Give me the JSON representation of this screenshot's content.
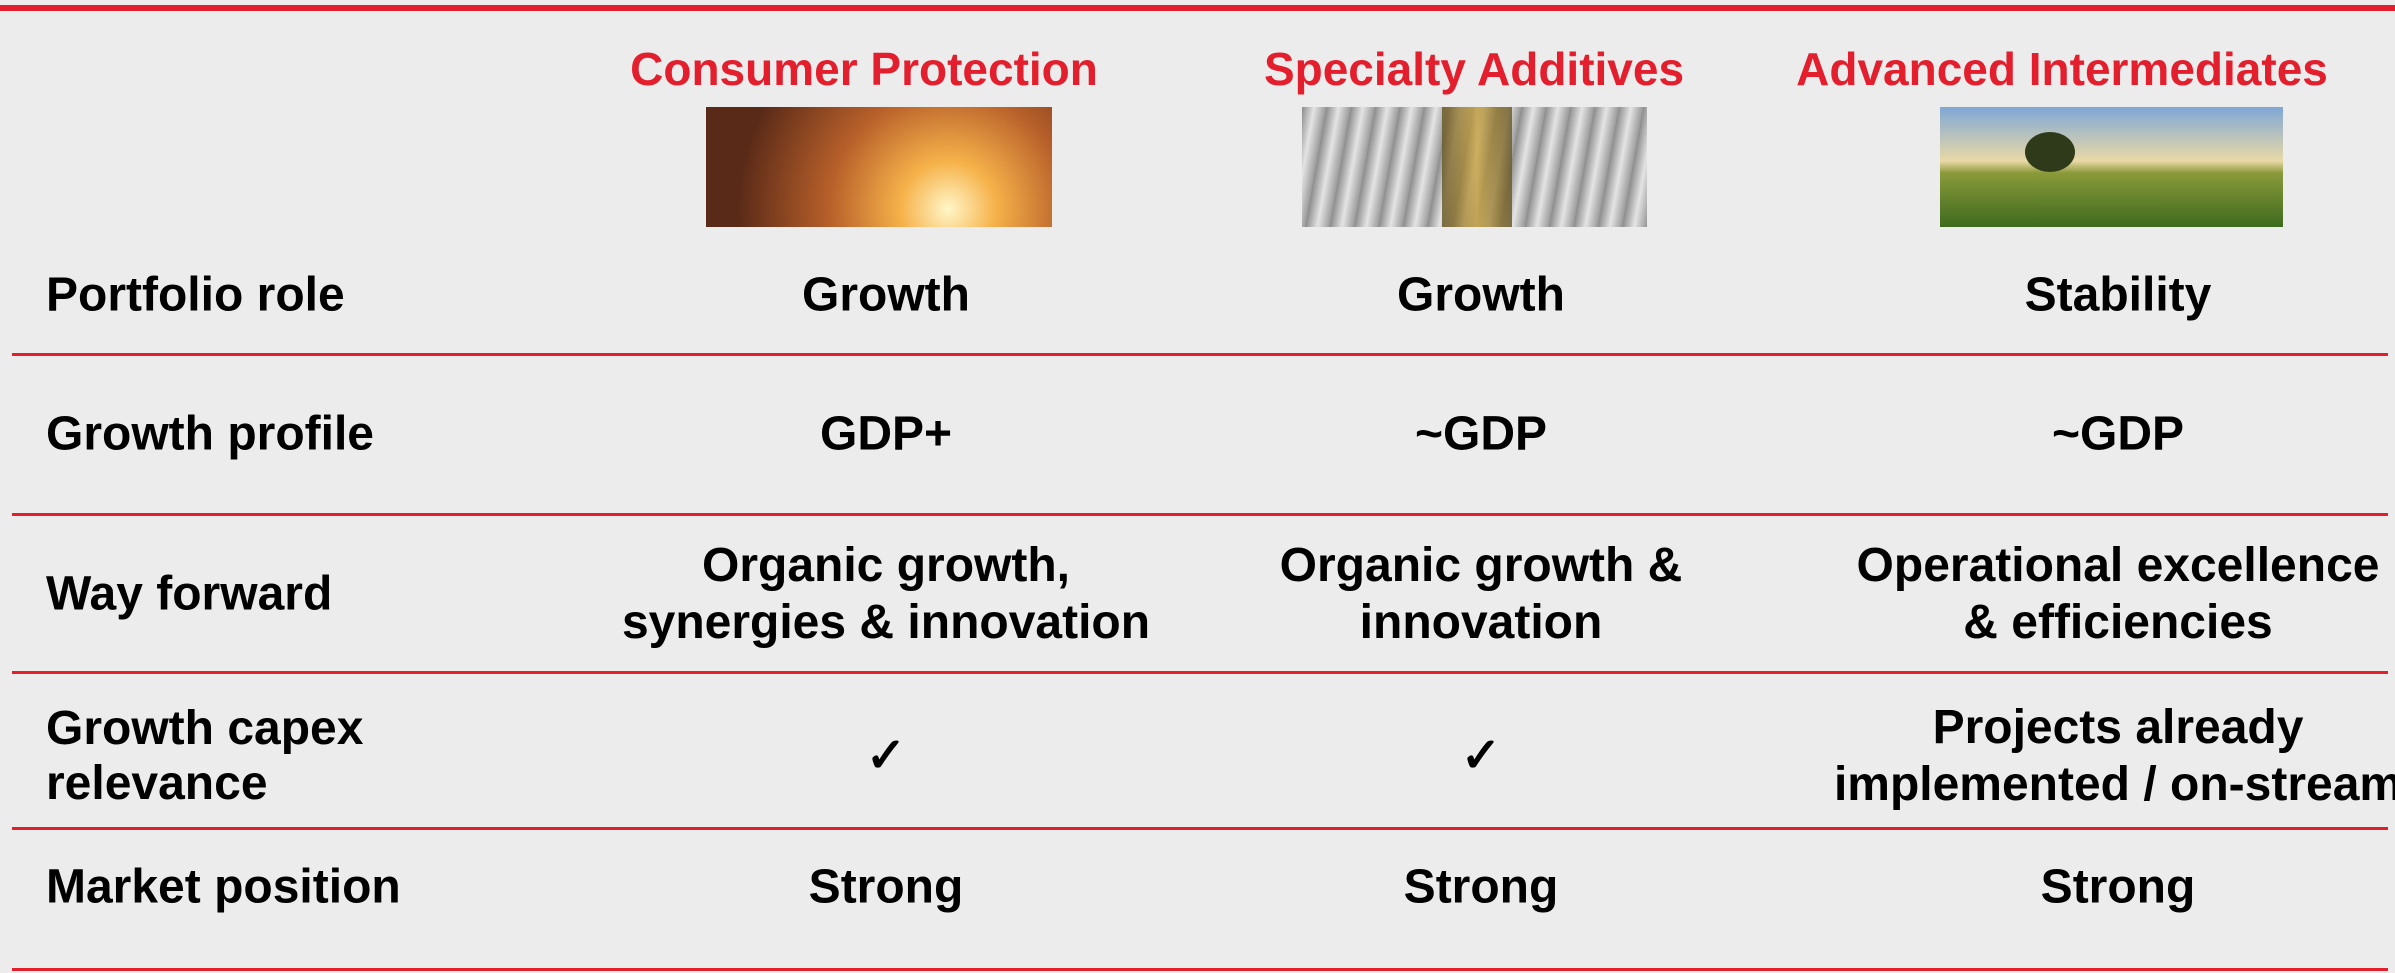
{
  "header": {
    "columns": [
      "Consumer Protection",
      "Specialty Additives",
      "Advanced Intermediates"
    ]
  },
  "rows": [
    {
      "label": [
        "Portfolio role"
      ],
      "cells": [
        [
          "Growth"
        ],
        [
          "Growth"
        ],
        [
          "Stability"
        ]
      ]
    },
    {
      "label": [
        "Growth profile"
      ],
      "cells": [
        [
          "GDP+"
        ],
        [
          "~GDP"
        ],
        [
          "~GDP"
        ]
      ]
    },
    {
      "label": [
        "Way forward"
      ],
      "cells": [
        [
          "Organic growth,",
          "synergies & innovation"
        ],
        [
          "Organic growth &",
          "innovation"
        ],
        [
          "Operational excellence",
          "& efficiencies"
        ]
      ]
    },
    {
      "label": [
        "Growth capex",
        "relevance"
      ],
      "cells": [
        [
          "✓"
        ],
        [
          "✓"
        ],
        [
          "Projects already",
          "implemented / on-stream"
        ]
      ]
    },
    {
      "label": [
        "Market position"
      ],
      "cells": [
        [
          "Strong"
        ],
        [
          "Strong"
        ],
        [
          "Strong"
        ]
      ]
    }
  ]
}
